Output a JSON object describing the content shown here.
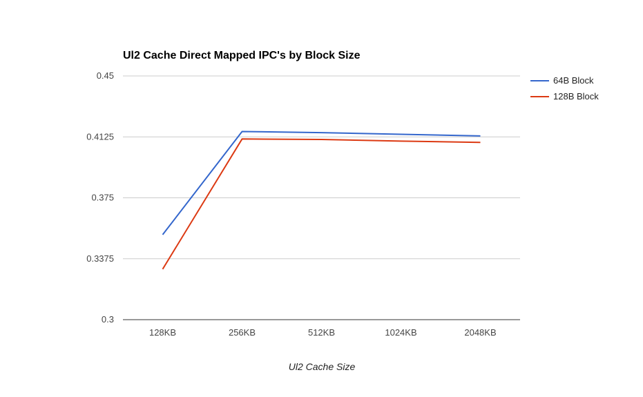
{
  "chart_data": {
    "type": "line",
    "title": "Ul2 Cache Direct Mapped IPC's by Block Size",
    "xlabel": "Ul2 Cache Size",
    "ylabel": "",
    "categories": [
      "128KB",
      "256KB",
      "512KB",
      "1024KB",
      "2048KB"
    ],
    "ylim": [
      0.3,
      0.45
    ],
    "yticks": [
      {
        "value": 0.45,
        "label": "0.45"
      },
      {
        "value": 0.4125,
        "label": "0.4125"
      },
      {
        "value": 0.375,
        "label": "0.375"
      },
      {
        "value": 0.3375,
        "label": "0.3375"
      },
      {
        "value": 0.3,
        "label": "0.3"
      }
    ],
    "grid": true,
    "legend_position": "right",
    "series": [
      {
        "name": "64B Block",
        "color": "#3366cc",
        "values": [
          0.3523,
          0.4158,
          0.4151,
          0.4141,
          0.4131
        ]
      },
      {
        "name": "128B Block",
        "color": "#dc3912",
        "values": [
          0.3311,
          0.4112,
          0.4109,
          0.4099,
          0.4091
        ]
      }
    ]
  }
}
